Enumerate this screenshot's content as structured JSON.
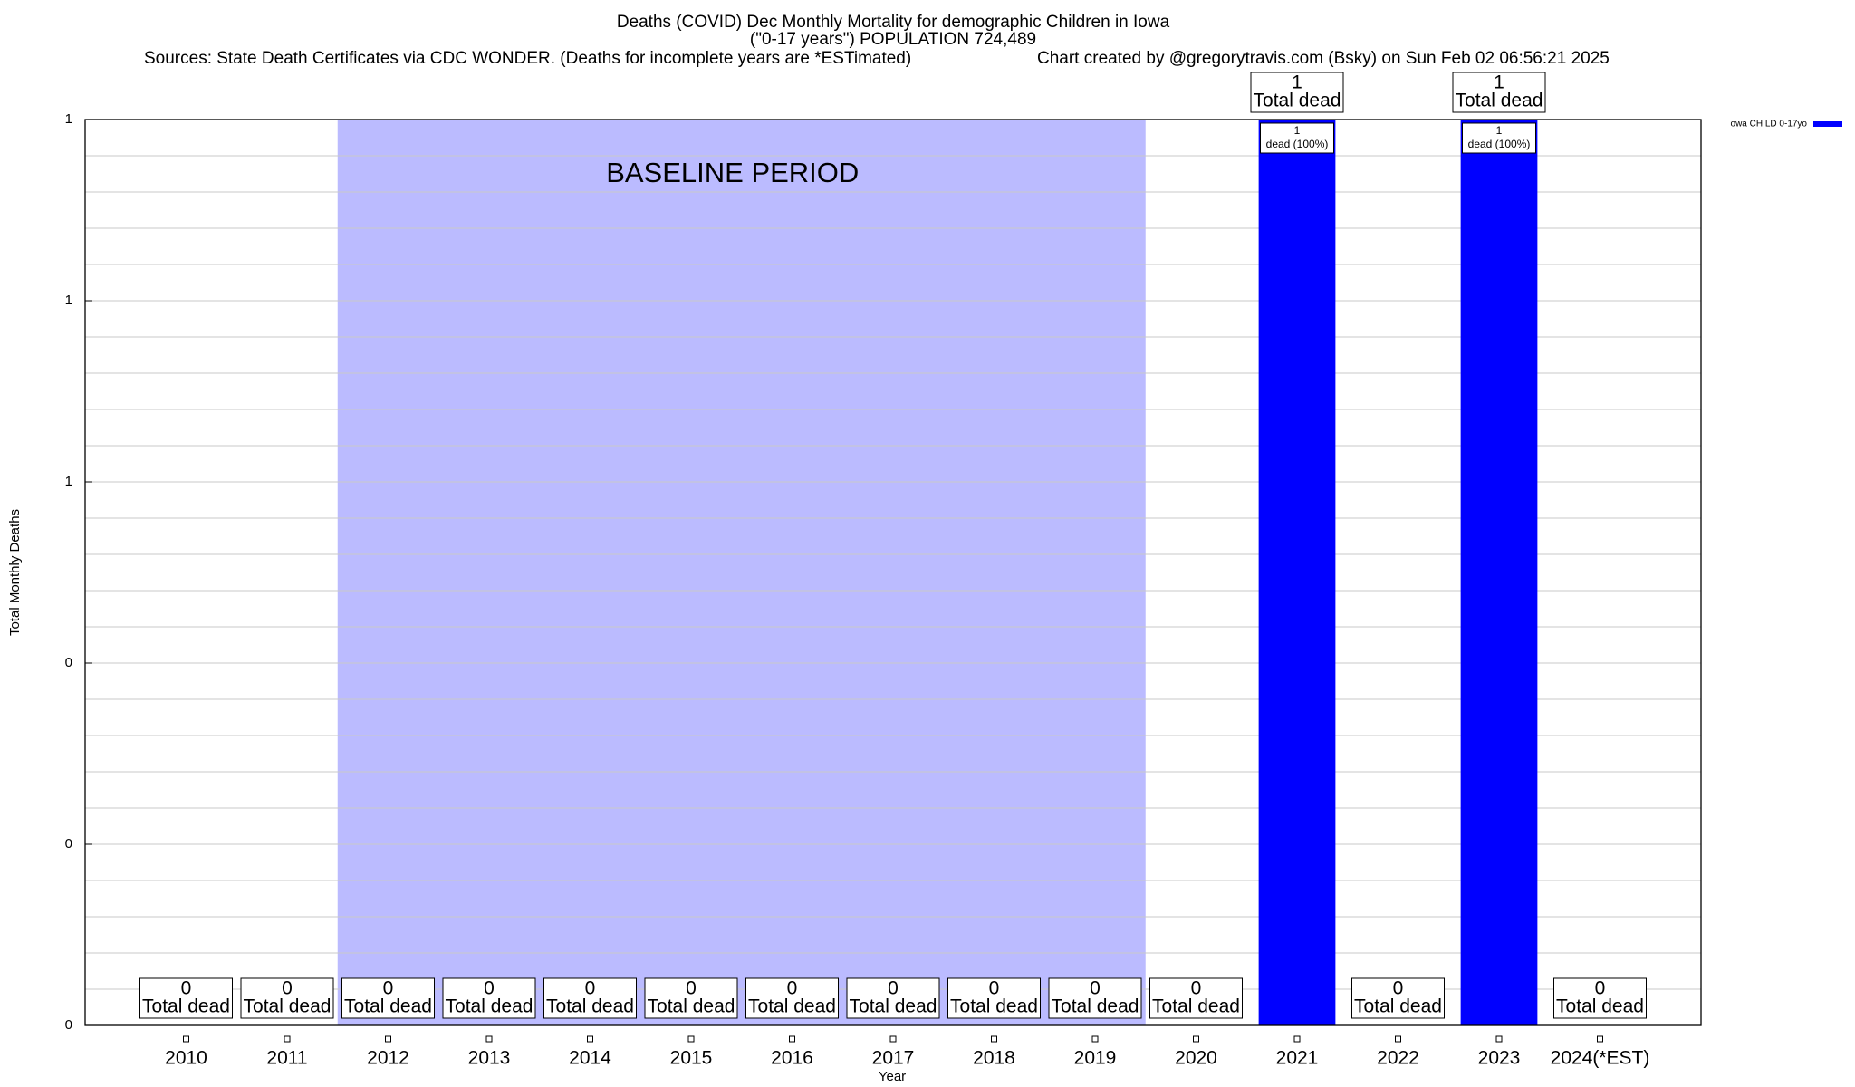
{
  "chart_data": {
    "type": "bar",
    "title": "Deaths (COVID) Dec Monthly Mortality for demographic Children in Iowa",
    "subtitle": "(\"0-17 years\") POPULATION 724,489",
    "source": "Sources: State Death Certificates via CDC WONDER. (Deaths for incomplete years are *ESTimated)",
    "credit": "Chart created by @gregorytravis.com (Bsky) on Sun Feb 02 06:56:21 2025",
    "x_label": "Year",
    "y_label": "Total Monthly Deaths",
    "categories": [
      "2010",
      "2011",
      "2012",
      "2013",
      "2014",
      "2015",
      "2016",
      "2017",
      "2018",
      "2019",
      "2020",
      "2021",
      "2022",
      "2023",
      "2024(*EST)"
    ],
    "series": [
      {
        "name": "owa CHILD 0-17yo",
        "color": "#0000ff",
        "values": [
          0,
          0,
          0,
          0,
          0,
          0,
          0,
          0,
          0,
          0,
          0,
          1,
          0,
          1,
          0
        ]
      }
    ],
    "total_caption": "Total dead",
    "inner_labels": [
      null,
      null,
      null,
      null,
      null,
      null,
      null,
      null,
      null,
      null,
      null,
      "dead (100%)",
      null,
      "dead (100%)",
      null
    ],
    "baseline": {
      "label": "BASELINE PERIOD",
      "start": "2012",
      "end": "2019",
      "color": "#bbbbff"
    },
    "ylim": [
      0,
      1
    ],
    "yticks": [
      0,
      {
        "value": 0.2,
        "label": "0"
      },
      {
        "value": 0.4,
        "label": "0"
      },
      {
        "value": 0.6,
        "label": "1"
      },
      {
        "value": 0.8,
        "label": "1"
      },
      1
    ],
    "minor_grid_subdivisions": 5,
    "grid": true,
    "legend": "top-right"
  }
}
